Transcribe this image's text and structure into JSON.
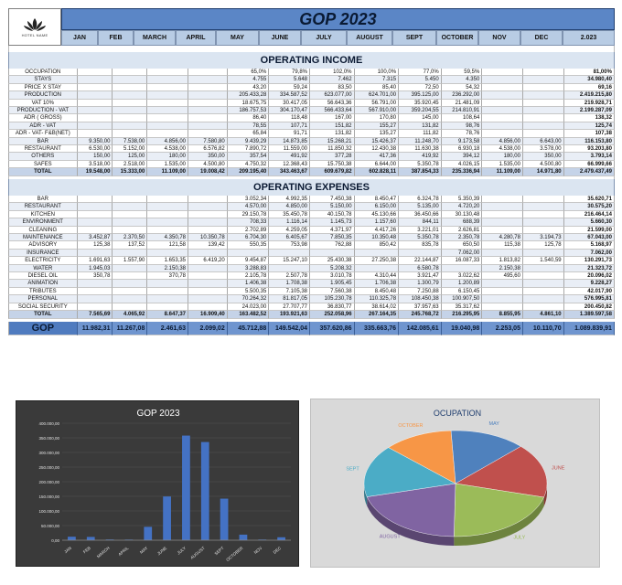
{
  "header": {
    "title": "GOP 2023",
    "logo_text": "HOTEL NAME",
    "months": [
      "JAN",
      "FEB",
      "MARCH",
      "APRIL",
      "MAY",
      "JUNE",
      "JULY",
      "AUGUST",
      "SEPT",
      "OCTOBER",
      "NOV",
      "DEC",
      "2.023"
    ]
  },
  "income": {
    "title": "OPERATING INCOME",
    "rows": [
      {
        "label": "OCCUPATION",
        "values": [
          "",
          "",
          "",
          "",
          "65,0%",
          "79,8%",
          "102,0%",
          "100,0%",
          "77,0%",
          "59,5%",
          "",
          "",
          "81,00%"
        ]
      },
      {
        "label": "STAYS",
        "values": [
          "",
          "",
          "",
          "",
          "4.755",
          "5.648",
          "7.462",
          "7.315",
          "5.450",
          "4.350",
          "",
          "",
          "34.980,40"
        ]
      },
      {
        "label": "PRICE X STAY",
        "values": [
          "",
          "",
          "",
          "",
          "43,20",
          "59,24",
          "83,50",
          "85,40",
          "72,50",
          "54,32",
          "",
          "",
          "69,16"
        ]
      },
      {
        "label": "PRODUCTION",
        "values": [
          "",
          "",
          "",
          "",
          "205.433,28",
          "334.587,52",
          "623.077,00",
          "624.701,00",
          "395.125,00",
          "236.292,00",
          "",
          "",
          "2.419.215,80"
        ]
      },
      {
        "label": "VAT 10%",
        "values": [
          "",
          "",
          "",
          "",
          "18.675,75",
          "30.417,05",
          "56.643,36",
          "56.791,00",
          "35.920,45",
          "21.481,09",
          "",
          "",
          "219.928,71"
        ]
      },
      {
        "label": "PRODUCTION - VAT",
        "values": [
          "",
          "",
          "",
          "",
          "186.757,53",
          "304.170,47",
          "566.433,64",
          "567.910,00",
          "359.204,55",
          "214.810,91",
          "",
          "",
          "2.199.287,09"
        ]
      },
      {
        "label": "ADR ( GROSS)",
        "values": [
          "",
          "",
          "",
          "",
          "86,40",
          "118,48",
          "167,00",
          "170,80",
          "145,00",
          "108,64",
          "",
          "",
          "138,32"
        ]
      },
      {
        "label": "ADR - VAT",
        "values": [
          "",
          "",
          "",
          "",
          "78,55",
          "107,71",
          "151,82",
          "155,27",
          "131,82",
          "98,76",
          "",
          "",
          "125,74"
        ]
      },
      {
        "label": "ADR - VAT- F&B(NET)",
        "values": [
          "",
          "",
          "",
          "",
          "65,84",
          "91,71",
          "131,82",
          "135,27",
          "111,82",
          "78,76",
          "",
          "",
          "107,38"
        ]
      },
      {
        "label": "BAR",
        "values": [
          "9.350,00",
          "7.538,00",
          "4.856,00",
          "7.580,80",
          "9.439,29",
          "14.873,85",
          "15.268,21",
          "15.426,37",
          "11.248,70",
          "9.173,58",
          "4.856,00",
          "6.643,00",
          "116.153,80"
        ]
      },
      {
        "label": "RESTAURANT",
        "values": [
          "6.530,00",
          "5.152,00",
          "4.538,00",
          "6.576,82",
          "7.890,72",
          "11.559,00",
          "11.850,32",
          "12.430,38",
          "11.630,38",
          "6.930,18",
          "4.538,00",
          "3.578,00",
          "93.203,80"
        ]
      },
      {
        "label": "OTHERS",
        "values": [
          "150,00",
          "125,00",
          "180,00",
          "350,00",
          "357,54",
          "491,92",
          "377,28",
          "417,36",
          "419,92",
          "394,12",
          "180,00",
          "350,00",
          "3.793,14"
        ]
      },
      {
        "label": "SAFES",
        "values": [
          "3.518,00",
          "2.518,00",
          "1.535,00",
          "4.500,80",
          "4.750,32",
          "12.368,43",
          "15.750,38",
          "6.644,00",
          "5.350,78",
          "4.026,15",
          "1.535,00",
          "4.500,80",
          "66.999,66"
        ]
      }
    ],
    "total": {
      "label": "TOTAL",
      "values": [
        "19.548,00",
        "15.333,00",
        "11.109,00",
        "19.008,42",
        "209.195,40",
        "343.463,67",
        "609.679,82",
        "602.828,11",
        "387.854,33",
        "235.336,94",
        "11.109,00",
        "14.971,80",
        "2.479.437,49"
      ]
    }
  },
  "expenses": {
    "title": "OPERATING EXPENSES",
    "rows": [
      {
        "label": "BAR",
        "values": [
          "",
          "",
          "",
          "",
          "3.052,34",
          "4.992,35",
          "7.450,38",
          "8.450,47",
          "6.324,78",
          "5.350,39",
          "",
          "",
          "35.620,71"
        ]
      },
      {
        "label": "RESTAURANT",
        "values": [
          "",
          "",
          "",
          "",
          "4.570,00",
          "4.850,00",
          "5.150,00",
          "6.150,00",
          "5.135,00",
          "4.720,20",
          "",
          "",
          "30.575,20"
        ]
      },
      {
        "label": "KITCHEN",
        "values": [
          "",
          "",
          "",
          "",
          "29.150,78",
          "35.450,78",
          "40.150,78",
          "45.130,66",
          "36.450,66",
          "30.130,48",
          "",
          "",
          "216.464,14"
        ]
      },
      {
        "label": "ENVIRONMENT",
        "values": [
          "",
          "",
          "",
          "",
          "708,33",
          "1.116,14",
          "1.145,73",
          "1.157,60",
          "844,11",
          "688,39",
          "",
          "",
          "5.660,30"
        ]
      },
      {
        "label": "CLEANING",
        "values": [
          "",
          "",
          "",
          "",
          "2.702,89",
          "4.259,05",
          "4.371,97",
          "4.417,26",
          "3.221,01",
          "2.626,81",
          "",
          "",
          "21.599,00"
        ]
      },
      {
        "label": "MAINTENANCE",
        "values": [
          "3.452,87",
          "2.370,50",
          "4.350,78",
          "10.350,78",
          "6.704,30",
          "6.405,67",
          "7.850,35",
          "10.350,48",
          "5.350,78",
          "2.350,78",
          "4.280,78",
          "3.194,73",
          "67.043,00"
        ]
      },
      {
        "label": "ADVISORY",
        "values": [
          "125,38",
          "137,52",
          "121,58",
          "139,42",
          "550,35",
          "753,98",
          "762,88",
          "850,42",
          "835,78",
          "650,50",
          "115,38",
          "125,78",
          "5.168,97"
        ]
      },
      {
        "label": "INSURANCE",
        "values": [
          "",
          "",
          "",
          "",
          "",
          "",
          "",
          "",
          "",
          "7.062,00",
          "",
          "",
          "7.062,00"
        ]
      },
      {
        "label": "ELECTRICITY",
        "values": [
          "1.691,63",
          "1.557,90",
          "1.653,35",
          "6.419,20",
          "9.454,87",
          "15.247,10",
          "25.430,38",
          "27.250,38",
          "22.144,87",
          "16.087,33",
          "1.813,82",
          "1.540,59",
          "130.291,73"
        ]
      },
      {
        "label": "WATER",
        "values": [
          "1.945,03",
          "",
          "2.150,38",
          "",
          "3.288,83",
          "",
          "5.208,32",
          "",
          "6.580,78",
          "",
          "2.150,38",
          "",
          "21.323,72"
        ]
      },
      {
        "label": "DIESEL OIL",
        "values": [
          "350,78",
          "",
          "370,78",
          "",
          "2.105,78",
          "2.507,78",
          "3.010,78",
          "4.310,44",
          "3.921,47",
          "3.022,62",
          "495,60",
          "",
          "20.096,02"
        ]
      },
      {
        "label": "ANIMATION",
        "values": [
          "",
          "",
          "",
          "",
          "1.406,38",
          "1.708,38",
          "1.905,45",
          "1.706,38",
          "1.300,79",
          "1.200,89",
          "",
          "",
          "9.228,27"
        ]
      },
      {
        "label": "TRIBUTES",
        "values": [
          "",
          "",
          "",
          "",
          "5.500,35",
          "7.105,38",
          "7.560,38",
          "8.450,48",
          "7.250,88",
          "6.150,45",
          "",
          "",
          "42.017,90"
        ]
      },
      {
        "label": "PERSONAL",
        "values": [
          "",
          "",
          "",
          "",
          "70.264,32",
          "81.817,05",
          "105.230,78",
          "110.325,78",
          "108.450,38",
          "100.907,50",
          "",
          "",
          "576.995,81"
        ]
      },
      {
        "label": "SOCIAL SECURITY",
        "values": [
          "",
          "",
          "",
          "",
          "24.023,00",
          "27.707,77",
          "36.830,77",
          "38.614,02",
          "37.957,63",
          "35.317,62",
          "",
          "",
          "200.450,82"
        ]
      }
    ],
    "total": {
      "label": "TOTAL",
      "values": [
        "7.565,69",
        "4.065,92",
        "8.647,37",
        "16.909,40",
        "163.482,52",
        "193.921,63",
        "252.058,96",
        "267.164,35",
        "245.768,72",
        "216.295,95",
        "8.855,95",
        "4.861,10",
        "1.389.597,58"
      ]
    }
  },
  "gop": {
    "label": "GOP",
    "values": [
      "11.982,31",
      "11.267,08",
      "2.461,63",
      "2.099,02",
      "45.712,88",
      "149.542,04",
      "357.620,86",
      "335.663,76",
      "142.085,61",
      "19.040,98",
      "2.253,05",
      "10.110,70",
      "1.089.839,91"
    ]
  },
  "chart_data": [
    {
      "type": "bar",
      "title": "GOP 2023",
      "categories": [
        "JAN",
        "FEB",
        "MARCH",
        "APRIL",
        "MAY",
        "JUNE",
        "JULY",
        "AUGUST",
        "SEPT",
        "OCTOBER",
        "NOV",
        "DEC"
      ],
      "values": [
        11982.31,
        11267.08,
        2461.63,
        2099.02,
        45712.88,
        149542.04,
        357620.86,
        335663.76,
        142085.61,
        19040.98,
        2253.05,
        10110.7
      ],
      "ylim": [
        0,
        400000
      ],
      "yticks": [
        "0,00",
        "50.000,00",
        "100.000,00",
        "150.000,00",
        "200.000,00",
        "250.000,00",
        "300.000,00",
        "350.000,00",
        "400.000,00"
      ],
      "bar_color": "#4472c4",
      "grid": true
    },
    {
      "type": "pie",
      "title": "OCUPATION",
      "labels": [
        "MAY",
        "JUNE",
        "JULY",
        "AUGUST",
        "SEPT",
        "OCTOBER"
      ],
      "values": [
        65.0,
        79.8,
        102.0,
        100.0,
        77.0,
        59.5
      ],
      "colors": [
        "#4f81bd",
        "#c0504d",
        "#9bbb59",
        "#8064a2",
        "#4bacc6",
        "#f79646"
      ]
    }
  ]
}
